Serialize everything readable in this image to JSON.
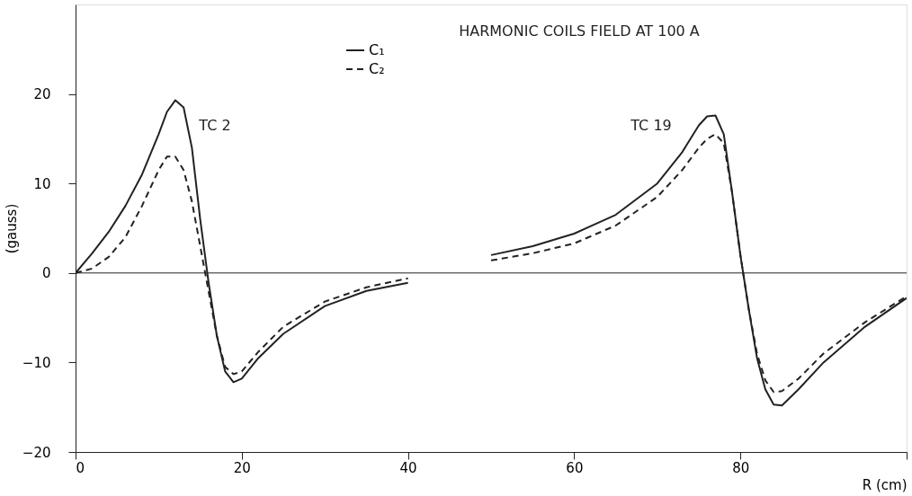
{
  "chart_data": {
    "type": "line",
    "title": "HARMONIC COILS FIELD AT 100 A",
    "xlabel": "R (cm)",
    "ylabel": "(gauss)",
    "x": [
      0,
      2,
      4,
      6,
      8,
      10,
      11,
      12,
      13,
      14,
      15,
      16,
      17,
      18,
      19,
      20,
      22,
      25,
      30,
      35,
      40,
      45,
      50,
      55,
      60,
      65,
      70,
      73,
      75,
      76,
      77,
      78,
      79,
      80,
      81,
      82,
      83,
      84,
      85,
      87,
      90,
      95,
      100
    ],
    "series": [
      {
        "name": "C₁",
        "color": "#222222",
        "line_style": "solid",
        "values": [
          0,
          2.2,
          4.6,
          7.5,
          11,
          15.5,
          18,
          19.3,
          18.5,
          14,
          6,
          -1,
          -7,
          -11,
          -12.2,
          -11.8,
          -9.5,
          -6.8,
          -3.7,
          -2,
          -1.1,
          null,
          2,
          3,
          4.4,
          6.5,
          10,
          13.5,
          16.5,
          17.5,
          17.6,
          15.5,
          9,
          2,
          -4,
          -9.5,
          -13,
          -14.7,
          -14.8,
          -13,
          -10,
          -6,
          -2.8
        ]
      },
      {
        "name": "C₂",
        "color": "#222222",
        "line_style": "dashed",
        "values": [
          0,
          0.5,
          1.8,
          4,
          7.5,
          11.5,
          13,
          13,
          11.5,
          8,
          3,
          -2,
          -7,
          -10.5,
          -11.3,
          -11,
          -8.8,
          -6,
          -3.2,
          -1.6,
          -0.6,
          null,
          1.4,
          2.2,
          3.3,
          5.3,
          8.5,
          11.5,
          14,
          15,
          15.5,
          14.5,
          9,
          2,
          -4,
          -9,
          -12,
          -13.3,
          -13.2,
          -11.8,
          -9,
          -5.5,
          -2.6
        ]
      }
    ],
    "xlim": [
      0,
      100
    ],
    "ylim": [
      -20,
      30
    ],
    "xticks": [
      0,
      20,
      40,
      60,
      80,
      {
        "value": 100,
        "label": null
      }
    ],
    "yticks": [
      -20,
      -10,
      0,
      10,
      20
    ],
    "ref_lines": [
      {
        "axis": "y",
        "value": 0,
        "label": null
      }
    ],
    "annotations": [
      "TC 2",
      "TC 19"
    ],
    "legend": "top",
    "grid": false
  }
}
